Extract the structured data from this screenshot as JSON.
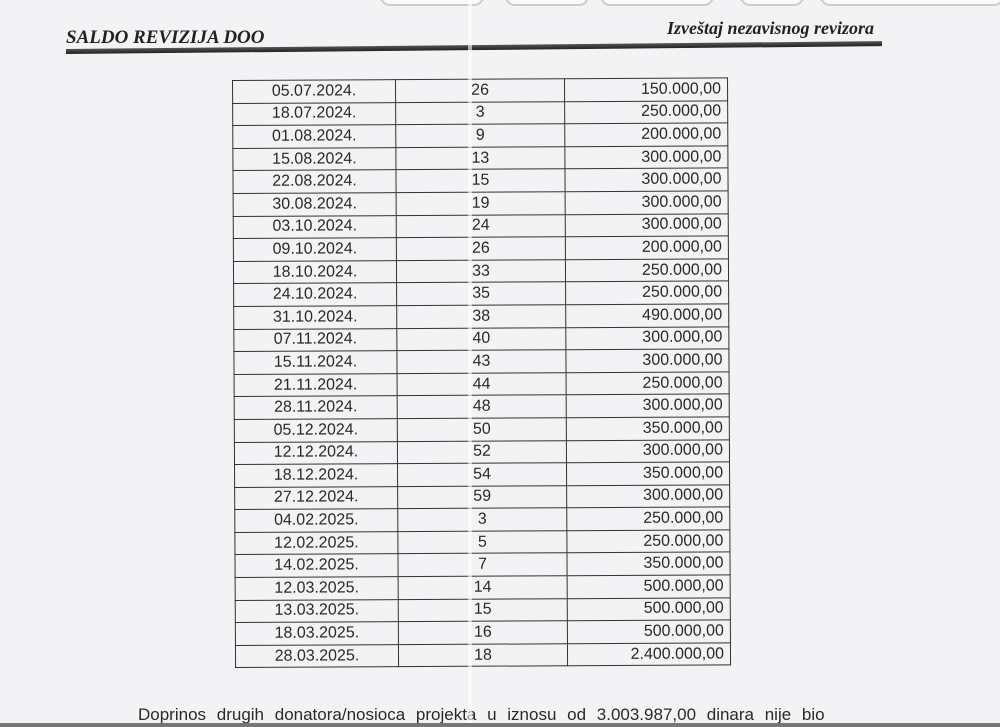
{
  "header": {
    "company": "SALDO REVIZIJA DOO",
    "report_title": "Izveštaj nezavisnog revizora"
  },
  "table": {
    "rows": [
      [
        "05.07.2024.",
        "26",
        "150.000,00"
      ],
      [
        "18.07.2024.",
        "3",
        "250.000,00"
      ],
      [
        "01.08.2024.",
        "9",
        "200.000,00"
      ],
      [
        "15.08.2024.",
        "13",
        "300.000,00"
      ],
      [
        "22.08.2024.",
        "15",
        "300.000,00"
      ],
      [
        "30.08.2024.",
        "19",
        "300.000,00"
      ],
      [
        "03.10.2024.",
        "24",
        "300.000,00"
      ],
      [
        "09.10.2024.",
        "26",
        "200.000,00"
      ],
      [
        "18.10.2024.",
        "33",
        "250.000,00"
      ],
      [
        "24.10.2024.",
        "35",
        "250.000,00"
      ],
      [
        "31.10.2024.",
        "38",
        "490.000,00"
      ],
      [
        "07.11.2024.",
        "40",
        "300.000,00"
      ],
      [
        "15.11.2024.",
        "43",
        "300.000,00"
      ],
      [
        "21.11.2024.",
        "44",
        "250.000,00"
      ],
      [
        "28.11.2024.",
        "48",
        "300.000,00"
      ],
      [
        "05.12.2024.",
        "50",
        "350.000,00"
      ],
      [
        "12.12.2024.",
        "52",
        "300.000,00"
      ],
      [
        "18.12.2024.",
        "54",
        "350.000,00"
      ],
      [
        "27.12.2024.",
        "59",
        "300.000,00"
      ],
      [
        "04.02.2025.",
        "3",
        "250.000,00"
      ],
      [
        "12.02.2025.",
        "5",
        "250.000,00"
      ],
      [
        "14.02.2025.",
        "7",
        "350.000,00"
      ],
      [
        "12.03.2025.",
        "14",
        "500.000,00"
      ],
      [
        "13.03.2025.",
        "15",
        "500.000,00"
      ],
      [
        "18.03.2025.",
        "16",
        "500.000,00"
      ],
      [
        "28.03.2025.",
        "18",
        "2.400.000,00"
      ]
    ]
  },
  "paragraph": "Doprinos drugih donatora/nosioca projekta u iznosu od 3.003.987,00 dinara nije bio"
}
